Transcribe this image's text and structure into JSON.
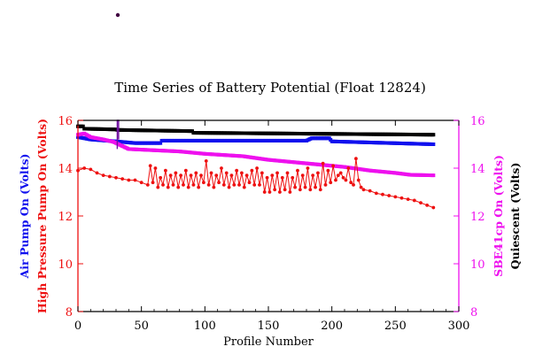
{
  "chart_data": {
    "type": "line",
    "title": "Time Series of Battery Potential (Float 12824)",
    "xlabel": "Profile Number",
    "xlim": [
      0,
      300
    ],
    "xticks": [
      0,
      50,
      100,
      150,
      200,
      250,
      300
    ],
    "left_axis": {
      "range": [
        8,
        16
      ],
      "ticks": [
        8,
        10,
        12,
        14,
        16
      ],
      "labels": [
        {
          "text": "Air Pump On (Volts)",
          "color": "#1010ee"
        },
        {
          "text": "High Pressure Pump On (Volts)",
          "color": "#ee1010"
        }
      ],
      "color": "#ee1010"
    },
    "right_axis": {
      "range": [
        8,
        16
      ],
      "ticks": [
        8,
        10,
        12,
        14,
        16
      ],
      "labels": [
        {
          "text": "SBE41cp On (Volts)",
          "color": "#ee10ee"
        },
        {
          "text": "Quiescent (Volts)",
          "color": "#000000"
        }
      ],
      "color": "#ee10ee"
    },
    "series": [
      {
        "name": "Quiescent (Volts)",
        "color": "#000000",
        "style": "squares",
        "points": [
          [
            0,
            15.75
          ],
          [
            4,
            15.75
          ],
          [
            5,
            15.65
          ],
          [
            30,
            15.62
          ],
          [
            31,
            15.6
          ],
          [
            90,
            15.55
          ],
          [
            91,
            15.48
          ],
          [
            280,
            15.4
          ]
        ]
      },
      {
        "name": "Air Pump On (Volts)",
        "color": "#1010ee",
        "style": "squares",
        "points": [
          [
            0,
            15.3
          ],
          [
            10,
            15.2
          ],
          [
            30,
            15.12
          ],
          [
            45,
            15.05
          ],
          [
            65,
            15.05
          ],
          [
            66,
            15.15
          ],
          [
            180,
            15.15
          ],
          [
            184,
            15.25
          ],
          [
            198,
            15.25
          ],
          [
            200,
            15.12
          ],
          [
            280,
            15.0
          ]
        ]
      },
      {
        "name": "SBE41cp On (Volts)",
        "color": "#ee10ee",
        "style": "squares",
        "points": [
          [
            0,
            15.4
          ],
          [
            5,
            15.45
          ],
          [
            10,
            15.3
          ],
          [
            20,
            15.2
          ],
          [
            28,
            15.1
          ],
          [
            32,
            15.0
          ],
          [
            40,
            14.8
          ],
          [
            60,
            14.75
          ],
          [
            80,
            14.7
          ],
          [
            100,
            14.6
          ],
          [
            130,
            14.5
          ],
          [
            150,
            14.35
          ],
          [
            180,
            14.2
          ],
          [
            210,
            14.05
          ],
          [
            230,
            13.9
          ],
          [
            250,
            13.8
          ],
          [
            262,
            13.72
          ],
          [
            280,
            13.7
          ]
        ]
      },
      {
        "name": "SBE41cp On spike",
        "color": "#7010a0",
        "style": "line",
        "points": [
          [
            31,
            14.8
          ],
          [
            31,
            16.0
          ],
          [
            32,
            16.0
          ],
          [
            32,
            15.2
          ]
        ]
      },
      {
        "name": "High Pressure Pump On (Volts)",
        "color": "#ee1010",
        "style": "markers",
        "points": [
          [
            0,
            13.9
          ],
          [
            5,
            14.0
          ],
          [
            10,
            13.95
          ],
          [
            15,
            13.8
          ],
          [
            20,
            13.7
          ],
          [
            25,
            13.65
          ],
          [
            30,
            13.6
          ],
          [
            35,
            13.55
          ],
          [
            40,
            13.5
          ],
          [
            45,
            13.5
          ],
          [
            50,
            13.4
          ],
          [
            55,
            13.3
          ],
          [
            57,
            14.1
          ],
          [
            59,
            13.4
          ],
          [
            61,
            14.0
          ],
          [
            63,
            13.2
          ],
          [
            65,
            13.6
          ],
          [
            67,
            13.3
          ],
          [
            69,
            13.9
          ],
          [
            71,
            13.2
          ],
          [
            73,
            13.7
          ],
          [
            75,
            13.3
          ],
          [
            77,
            13.8
          ],
          [
            79,
            13.2
          ],
          [
            81,
            13.7
          ],
          [
            83,
            13.3
          ],
          [
            85,
            13.9
          ],
          [
            87,
            13.2
          ],
          [
            89,
            13.7
          ],
          [
            91,
            13.3
          ],
          [
            93,
            13.8
          ],
          [
            95,
            13.2
          ],
          [
            97,
            13.7
          ],
          [
            99,
            13.4
          ],
          [
            101,
            14.3
          ],
          [
            103,
            13.3
          ],
          [
            105,
            13.8
          ],
          [
            107,
            13.2
          ],
          [
            109,
            13.7
          ],
          [
            111,
            13.4
          ],
          [
            113,
            14.0
          ],
          [
            115,
            13.3
          ],
          [
            117,
            13.8
          ],
          [
            119,
            13.2
          ],
          [
            121,
            13.7
          ],
          [
            123,
            13.3
          ],
          [
            125,
            13.9
          ],
          [
            127,
            13.3
          ],
          [
            129,
            13.8
          ],
          [
            131,
            13.2
          ],
          [
            133,
            13.7
          ],
          [
            135,
            13.4
          ],
          [
            137,
            13.9
          ],
          [
            139,
            13.3
          ],
          [
            141,
            14.0
          ],
          [
            143,
            13.3
          ],
          [
            145,
            13.8
          ],
          [
            147,
            13.0
          ],
          [
            149,
            13.6
          ],
          [
            151,
            13.0
          ],
          [
            153,
            13.7
          ],
          [
            155,
            13.1
          ],
          [
            157,
            13.8
          ],
          [
            159,
            13.0
          ],
          [
            161,
            13.6
          ],
          [
            163,
            13.1
          ],
          [
            165,
            13.8
          ],
          [
            167,
            13.0
          ],
          [
            169,
            13.6
          ],
          [
            171,
            13.2
          ],
          [
            173,
            13.9
          ],
          [
            175,
            13.1
          ],
          [
            177,
            13.7
          ],
          [
            179,
            13.2
          ],
          [
            181,
            14.0
          ],
          [
            183,
            13.1
          ],
          [
            185,
            13.7
          ],
          [
            187,
            13.2
          ],
          [
            189,
            13.8
          ],
          [
            191,
            13.1
          ],
          [
            193,
            14.2
          ],
          [
            195,
            13.3
          ],
          [
            197,
            13.9
          ],
          [
            199,
            13.4
          ],
          [
            201,
            14.1
          ],
          [
            203,
            13.5
          ],
          [
            205,
            13.7
          ],
          [
            207,
            13.8
          ],
          [
            209,
            13.6
          ],
          [
            211,
            13.5
          ],
          [
            213,
            14.0
          ],
          [
            215,
            13.4
          ],
          [
            217,
            13.3
          ],
          [
            219,
            14.4
          ],
          [
            221,
            13.5
          ],
          [
            223,
            13.2
          ],
          [
            225,
            13.1
          ],
          [
            230,
            13.05
          ],
          [
            235,
            12.95
          ],
          [
            240,
            12.9
          ],
          [
            245,
            12.85
          ],
          [
            250,
            12.8
          ],
          [
            255,
            12.75
          ],
          [
            260,
            12.7
          ],
          [
            265,
            12.65
          ],
          [
            270,
            12.55
          ],
          [
            275,
            12.45
          ],
          [
            280,
            12.35
          ]
        ]
      }
    ],
    "annotations": [
      {
        "text": "•",
        "x": 31,
        "y": 21.3
      }
    ]
  }
}
